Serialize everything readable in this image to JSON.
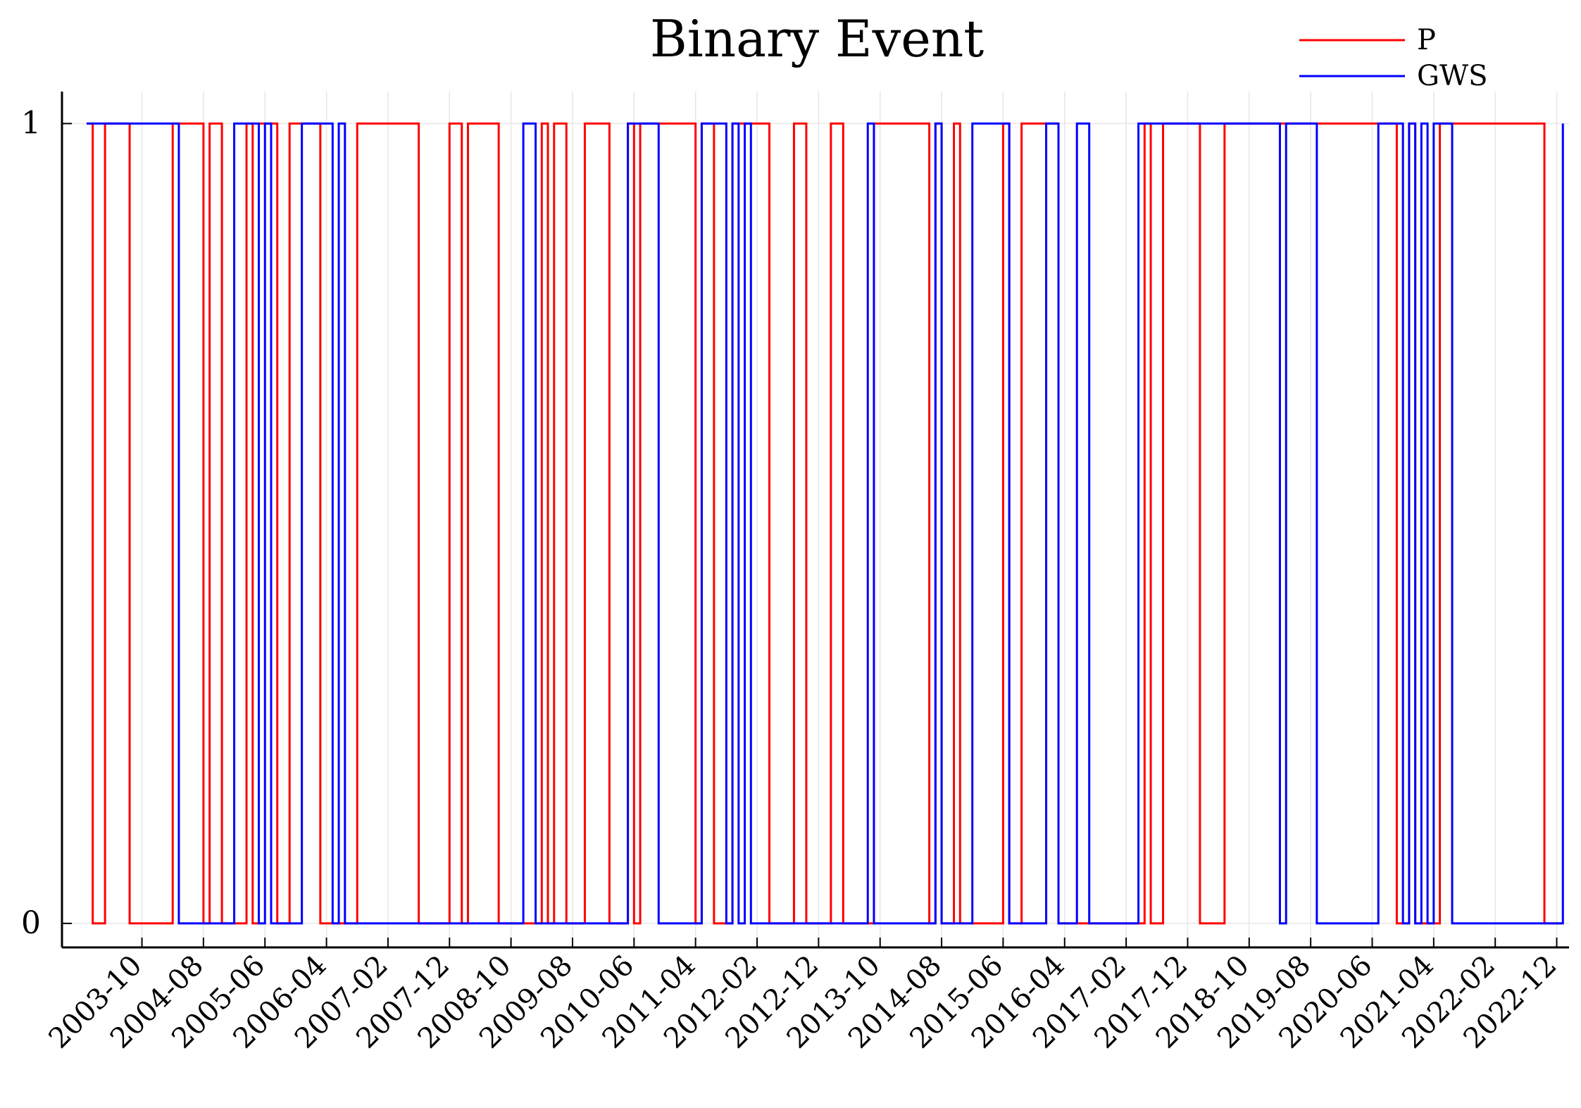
{
  "chart_data": {
    "type": "line",
    "title": "Binary Event",
    "xlabel": "",
    "ylabel": "",
    "x_axis_type": "date-month",
    "xlim": [
      "2002-09",
      "2023-02"
    ],
    "ylim": [
      -0.03,
      1.04
    ],
    "grid": true,
    "legend_position": "top-right",
    "yticks": [
      0,
      1
    ],
    "ytick_labels": [
      "0",
      "1"
    ],
    "xticks": [
      "2003-10",
      "2004-08",
      "2005-06",
      "2006-04",
      "2007-02",
      "2007-12",
      "2008-10",
      "2009-08",
      "2010-06",
      "2011-04",
      "2012-02",
      "2012-12",
      "2013-10",
      "2014-08",
      "2015-06",
      "2016-04",
      "2017-02",
      "2017-12",
      "2018-10",
      "2019-08",
      "2020-06",
      "2021-04",
      "2022-02",
      "2022-12"
    ],
    "step": "post",
    "series": [
      {
        "name": "P",
        "color": "#ff0000",
        "x": [
          "2003-01",
          "2003-02",
          "2003-03",
          "2003-04",
          "2003-08",
          "2003-09",
          "2003-10",
          "2004-03",
          "2004-04",
          "2004-08",
          "2004-09",
          "2004-10",
          "2004-11",
          "2005-02",
          "2005-03",
          "2005-04",
          "2005-05",
          "2005-06",
          "2005-08",
          "2005-09",
          "2005-10",
          "2006-01",
          "2006-03",
          "2006-04",
          "2006-05",
          "2006-06",
          "2006-07",
          "2006-08",
          "2006-09",
          "2006-10",
          "2007-07",
          "2007-08",
          "2007-12",
          "2008-02",
          "2008-03",
          "2008-07",
          "2008-08",
          "2008-12",
          "2009-02",
          "2009-03",
          "2009-04",
          "2009-05",
          "2009-06",
          "2009-07",
          "2009-09",
          "2009-10",
          "2010-01",
          "2010-02",
          "2010-05",
          "2010-06",
          "2010-07",
          "2011-04",
          "2011-05",
          "2011-06",
          "2011-07",
          "2011-08",
          "2011-10",
          "2011-11",
          "2012-04",
          "2012-05",
          "2012-08",
          "2012-09",
          "2012-10",
          "2013-02",
          "2013-03",
          "2013-04",
          "2013-08",
          "2013-09",
          "2014-06",
          "2014-07",
          "2014-08",
          "2014-09",
          "2014-10",
          "2014-11",
          "2015-06",
          "2015-07",
          "2015-08",
          "2015-09",
          "2016-02",
          "2016-03",
          "2016-04",
          "2017-05",
          "2017-06",
          "2017-07",
          "2017-08",
          "2018-02",
          "2018-03",
          "2018-06",
          "2018-07",
          "2020-09",
          "2020-10",
          "2020-11",
          "2020-12",
          "2021-01",
          "2021-05",
          "2021-06",
          "2022-10",
          "2022-11",
          "2023-01"
        ],
        "values": [
          1,
          0,
          0,
          1,
          0,
          0,
          0,
          1,
          1,
          0,
          1,
          1,
          0,
          0,
          1,
          0,
          1,
          1,
          0,
          0,
          1,
          1,
          0,
          0,
          0,
          0,
          0,
          0,
          1,
          1,
          0,
          0,
          1,
          0,
          1,
          1,
          0,
          0,
          0,
          1,
          0,
          1,
          1,
          0,
          0,
          1,
          1,
          0,
          1,
          0,
          1,
          0,
          1,
          1,
          0,
          0,
          1,
          1,
          0,
          0,
          1,
          1,
          0,
          1,
          1,
          0,
          0,
          1,
          0,
          1,
          0,
          0,
          1,
          0,
          1,
          0,
          0,
          1,
          1,
          0,
          0,
          1,
          0,
          0,
          1,
          0,
          0,
          1,
          1,
          1,
          0,
          0,
          1,
          0,
          1,
          1,
          0,
          0,
          0
        ]
      },
      {
        "name": "GWS",
        "color": "#0000ff",
        "x": [
          "2003-01",
          "2004-04",
          "2005-01",
          "2005-04",
          "2005-05",
          "2005-06",
          "2005-07",
          "2005-08",
          "2005-12",
          "2006-05",
          "2006-06",
          "2006-07",
          "2006-08",
          "2008-12",
          "2009-01",
          "2009-02",
          "2009-03",
          "2010-05",
          "2010-06",
          "2010-10",
          "2011-05",
          "2011-06",
          "2011-09",
          "2011-10",
          "2011-11",
          "2011-12",
          "2012-01",
          "2012-02",
          "2013-07",
          "2013-08",
          "2013-09",
          "2013-10",
          "2014-07",
          "2014-08",
          "2015-01",
          "2015-06",
          "2015-07",
          "2015-09",
          "2016-01",
          "2016-03",
          "2016-04",
          "2016-06",
          "2016-08",
          "2017-04",
          "2017-05",
          "2017-07",
          "2018-06",
          "2018-07",
          "2019-03",
          "2019-04",
          "2019-05",
          "2019-06",
          "2019-07",
          "2019-09",
          "2020-07",
          "2020-11",
          "2020-12",
          "2021-01",
          "2021-02",
          "2021-03",
          "2021-04",
          "2021-07",
          "2023-01"
        ],
        "values": [
          1,
          0,
          1,
          1,
          0,
          1,
          0,
          0,
          1,
          0,
          1,
          0,
          0,
          1,
          1,
          0,
          0,
          1,
          1,
          0,
          1,
          1,
          0,
          1,
          0,
          1,
          0,
          0,
          0,
          1,
          0,
          0,
          1,
          0,
          1,
          1,
          0,
          0,
          1,
          0,
          0,
          1,
          0,
          1,
          1,
          1,
          1,
          1,
          0,
          1,
          1,
          1,
          1,
          0,
          1,
          0,
          1,
          0,
          1,
          0,
          1,
          0,
          1
        ]
      }
    ]
  }
}
